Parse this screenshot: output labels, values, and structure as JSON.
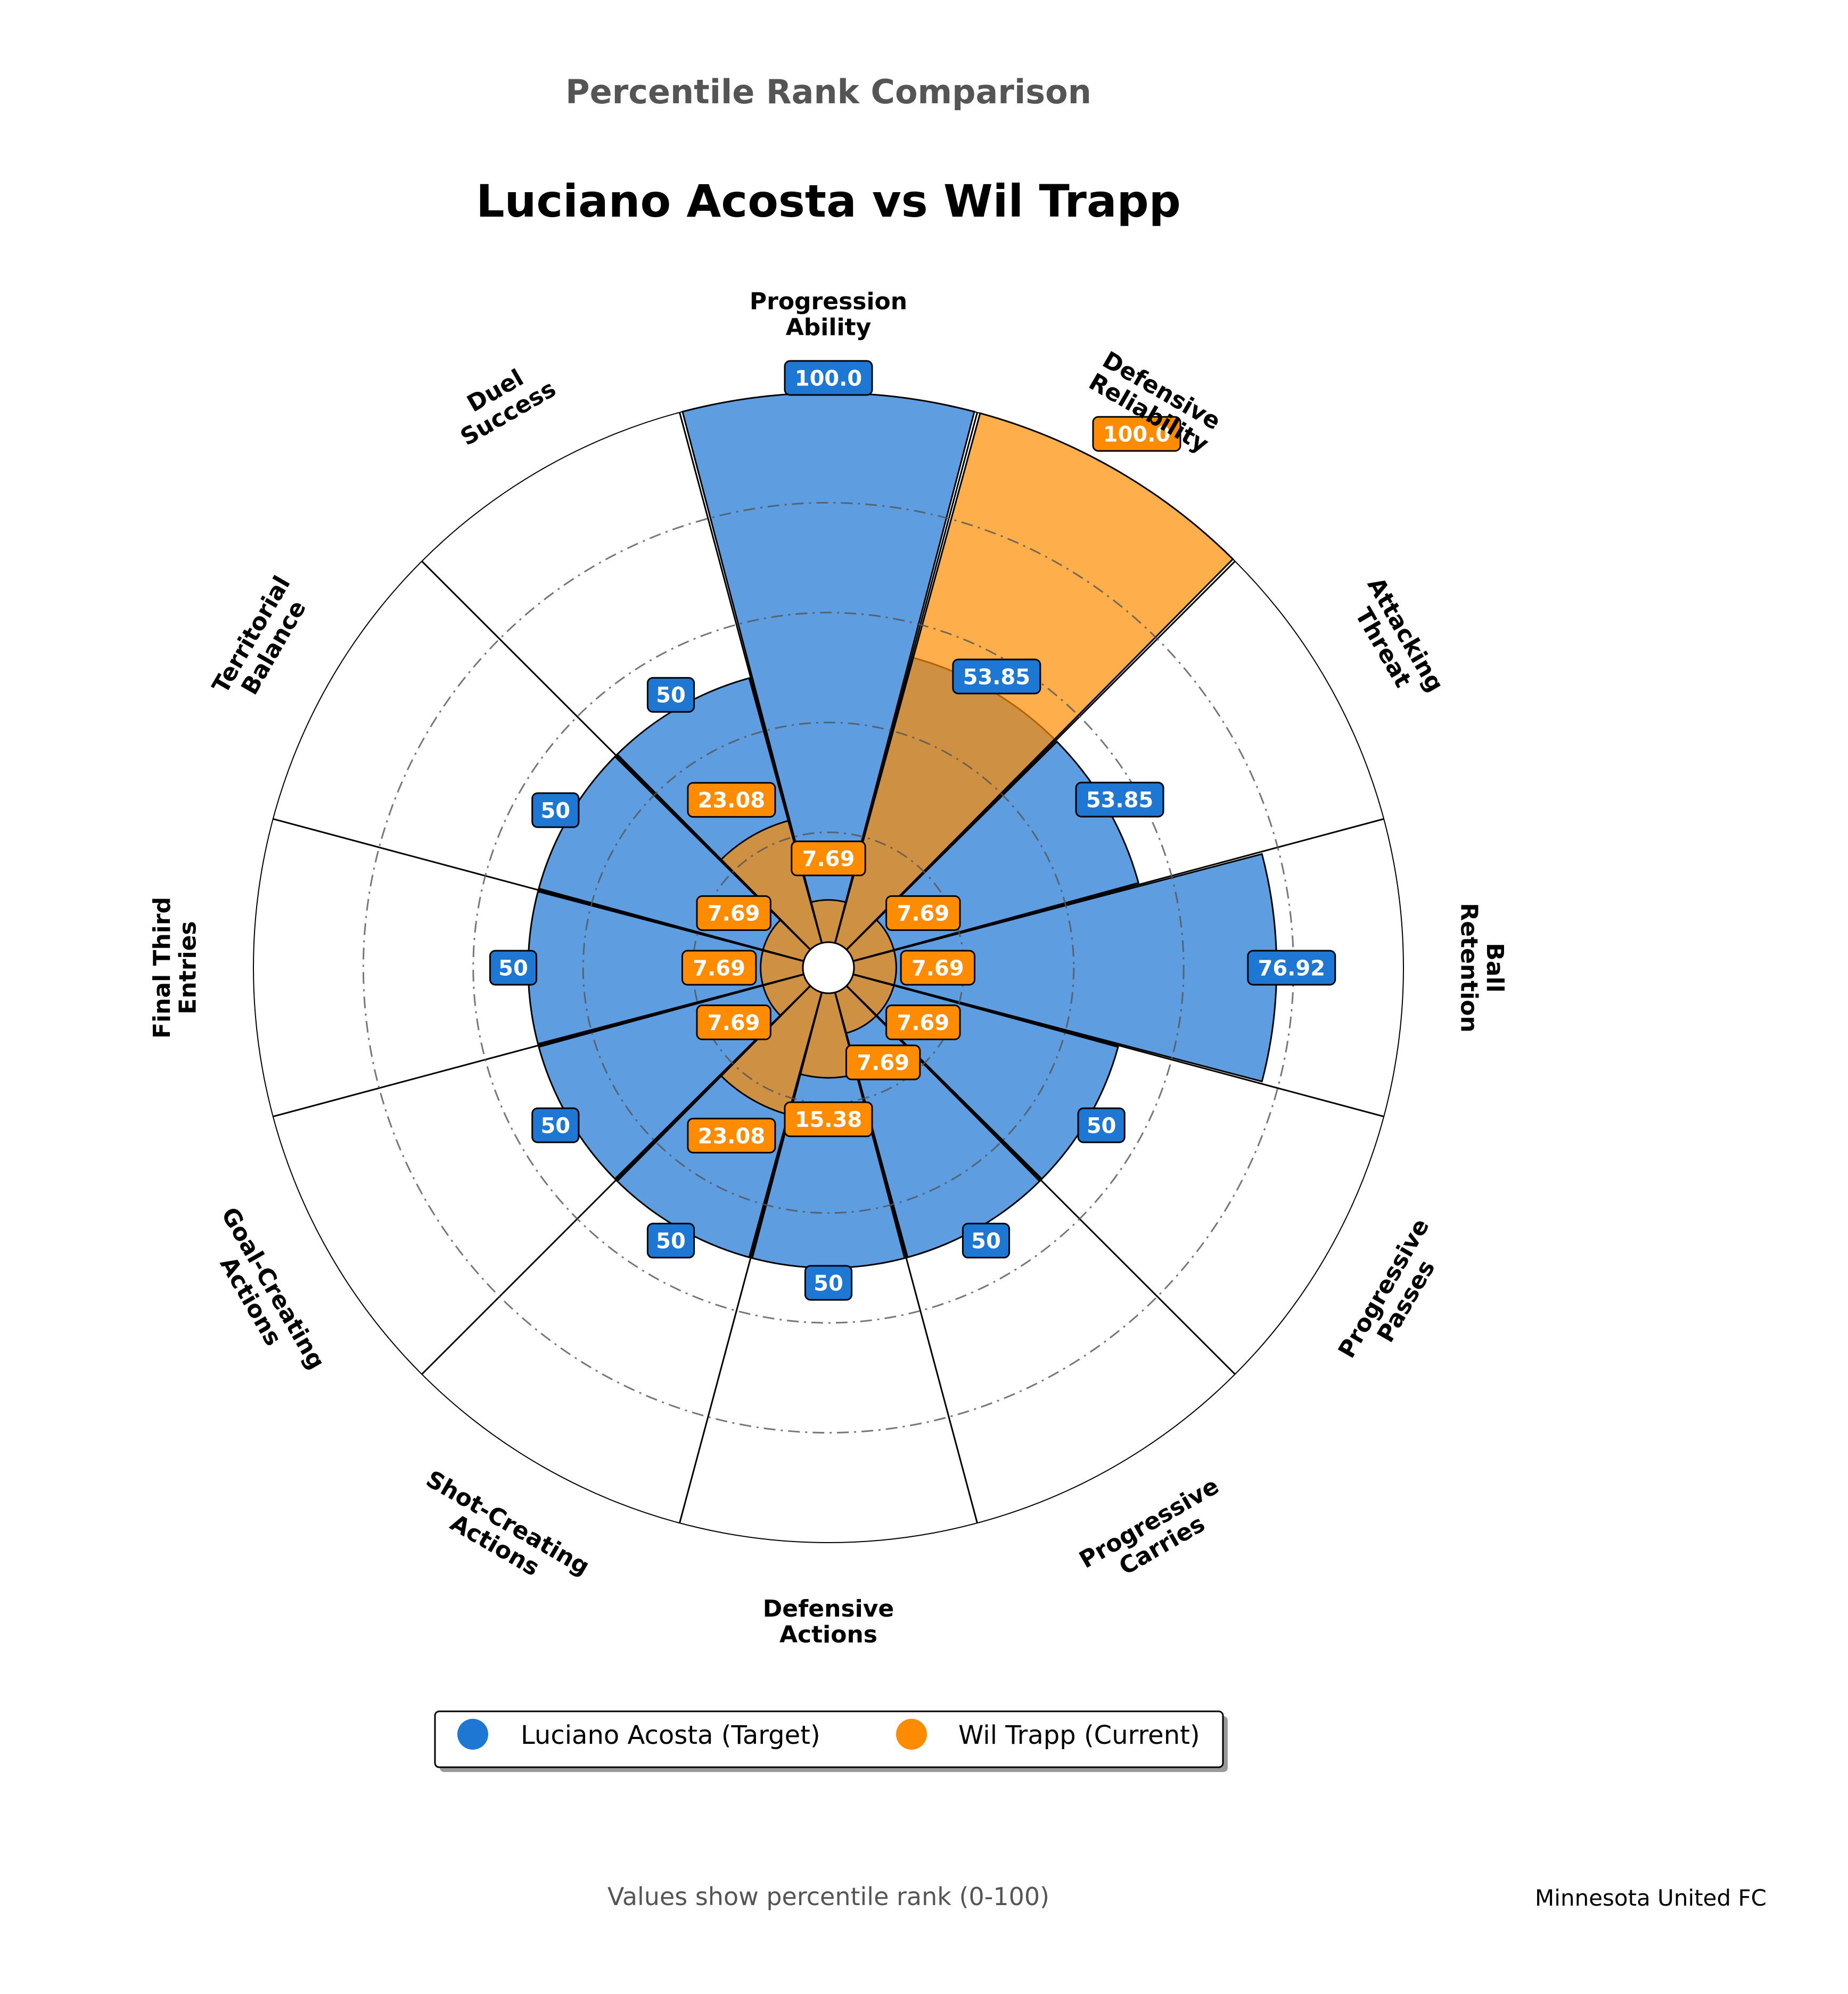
{
  "header": {
    "suptitle": "Percentile Rank Comparison",
    "title": "Luciano Acosta vs Wil Trapp"
  },
  "footer": {
    "note": "Values show percentile rank (0-100)",
    "team": "Minnesota United FC"
  },
  "colors": {
    "target": "#1f77d4",
    "current": "#ff8c00",
    "grid": "#555555",
    "spoke": "#000000"
  },
  "chart_data": {
    "type": "polar-bar",
    "rlim": [
      0,
      100
    ],
    "grid_levels": [
      20,
      40,
      60,
      80
    ],
    "grid": true,
    "legend_position": "bottom-center",
    "categories": [
      "Progression\nAbility",
      "Defensive\nReliability",
      "Attacking\nThreat",
      "Ball\nRetention",
      "Progressive\nPasses",
      "Progressive\nCarries",
      "Defensive\nActions",
      "Shot-Creating\nActions",
      "Goal-Creating\nActions",
      "Final Third\nEntries",
      "Territorial\nBalance",
      "Duel\nSuccess"
    ],
    "series": [
      {
        "name": "Luciano Acosta (Target)",
        "values": [
          100,
          53.85,
          53.85,
          76.92,
          50,
          50,
          50,
          50,
          50,
          50,
          50,
          50
        ],
        "labels": [
          "100.0",
          "53.85",
          "53.85",
          "76.92",
          "50",
          "50",
          "50",
          "50",
          "50",
          "50",
          "50",
          "50"
        ]
      },
      {
        "name": "Wil Trapp (Current)",
        "values": [
          7.69,
          100,
          7.69,
          7.69,
          7.69,
          7.69,
          15.38,
          23.08,
          7.69,
          7.69,
          7.69,
          23.08
        ],
        "labels": [
          "7.69",
          "100.0",
          "7.69",
          "7.69",
          "7.69",
          "7.69",
          "15.38",
          "23.08",
          "7.69",
          "7.69",
          "7.69",
          "23.08"
        ]
      }
    ]
  }
}
